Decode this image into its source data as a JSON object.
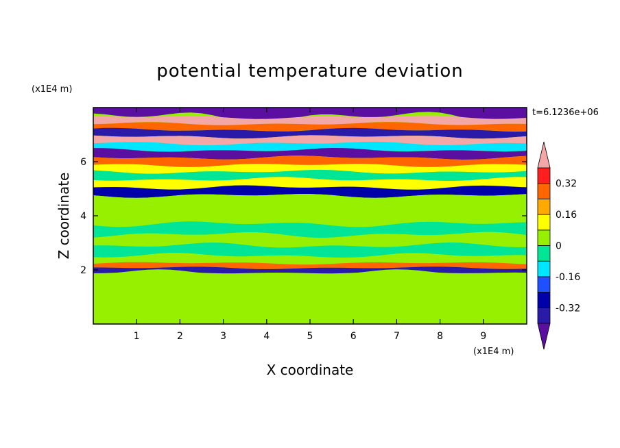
{
  "chart_data": {
    "type": "heatmap",
    "title": "potential temperature deviation",
    "xlabel": "X coordinate",
    "ylabel": "Z coordinate",
    "x_unit": "(x1E4 m)",
    "y_unit": "(x1E4 m)",
    "time_label": "t=6.1236e+06",
    "xlim": [
      0,
      10
    ],
    "ylim": [
      0,
      8
    ],
    "x_ticks": [
      "1",
      "2",
      "3",
      "4",
      "5",
      "6",
      "7",
      "8",
      "9"
    ],
    "y_ticks": [
      "2",
      "4",
      "6"
    ],
    "colorbar": {
      "tick_labels": [
        "0.32",
        "0.16",
        "0",
        "-0.16",
        "-0.32"
      ],
      "tick_values": [
        0.32,
        0.16,
        0,
        -0.16,
        -0.32
      ],
      "levels": [
        -0.4,
        -0.32,
        -0.24,
        -0.16,
        -0.08,
        0,
        0.08,
        0.16,
        0.24,
        0.32,
        0.4
      ],
      "colors": [
        "#5a0fa0",
        "#2a1aa8",
        "#0000aa",
        "#1e50ff",
        "#00e6ff",
        "#00e696",
        "#96f000",
        "#ffff00",
        "#ffaa00",
        "#ff6600",
        "#ff1e1e",
        "#f4a7a7"
      ],
      "extend": "both"
    },
    "bands": [
      {
        "z": 7.8,
        "value": -0.45
      },
      {
        "z": 7.5,
        "value": 0.45
      },
      {
        "z": 7.3,
        "value": 0.25
      },
      {
        "z": 7.05,
        "value": -0.4
      },
      {
        "z": 6.8,
        "value": 0.42
      },
      {
        "z": 6.55,
        "value": -0.1
      },
      {
        "z": 6.3,
        "value": -0.42
      },
      {
        "z": 6.0,
        "value": 0.3
      },
      {
        "z": 5.75,
        "value": 0.15
      },
      {
        "z": 5.5,
        "value": -0.05
      },
      {
        "z": 5.2,
        "value": 0.1
      },
      {
        "z": 4.9,
        "value": -0.3
      },
      {
        "z": 4.6,
        "value": 0.04
      },
      {
        "z": 4.3,
        "value": 0.02
      },
      {
        "z": 3.9,
        "value": 0.05
      },
      {
        "z": 3.5,
        "value": -0.02
      },
      {
        "z": 3.1,
        "value": 0.05
      },
      {
        "z": 2.7,
        "value": -0.03
      },
      {
        "z": 2.35,
        "value": 0.05
      },
      {
        "z": 2.15,
        "value": 0.3
      },
      {
        "z": 2.0,
        "value": -0.4
      },
      {
        "z": 1.8,
        "value": 0.05
      },
      {
        "z": 1.2,
        "value": 0.03
      },
      {
        "z": 0.6,
        "value": 0.02
      },
      {
        "z": 0.15,
        "value": 0.05
      }
    ]
  }
}
